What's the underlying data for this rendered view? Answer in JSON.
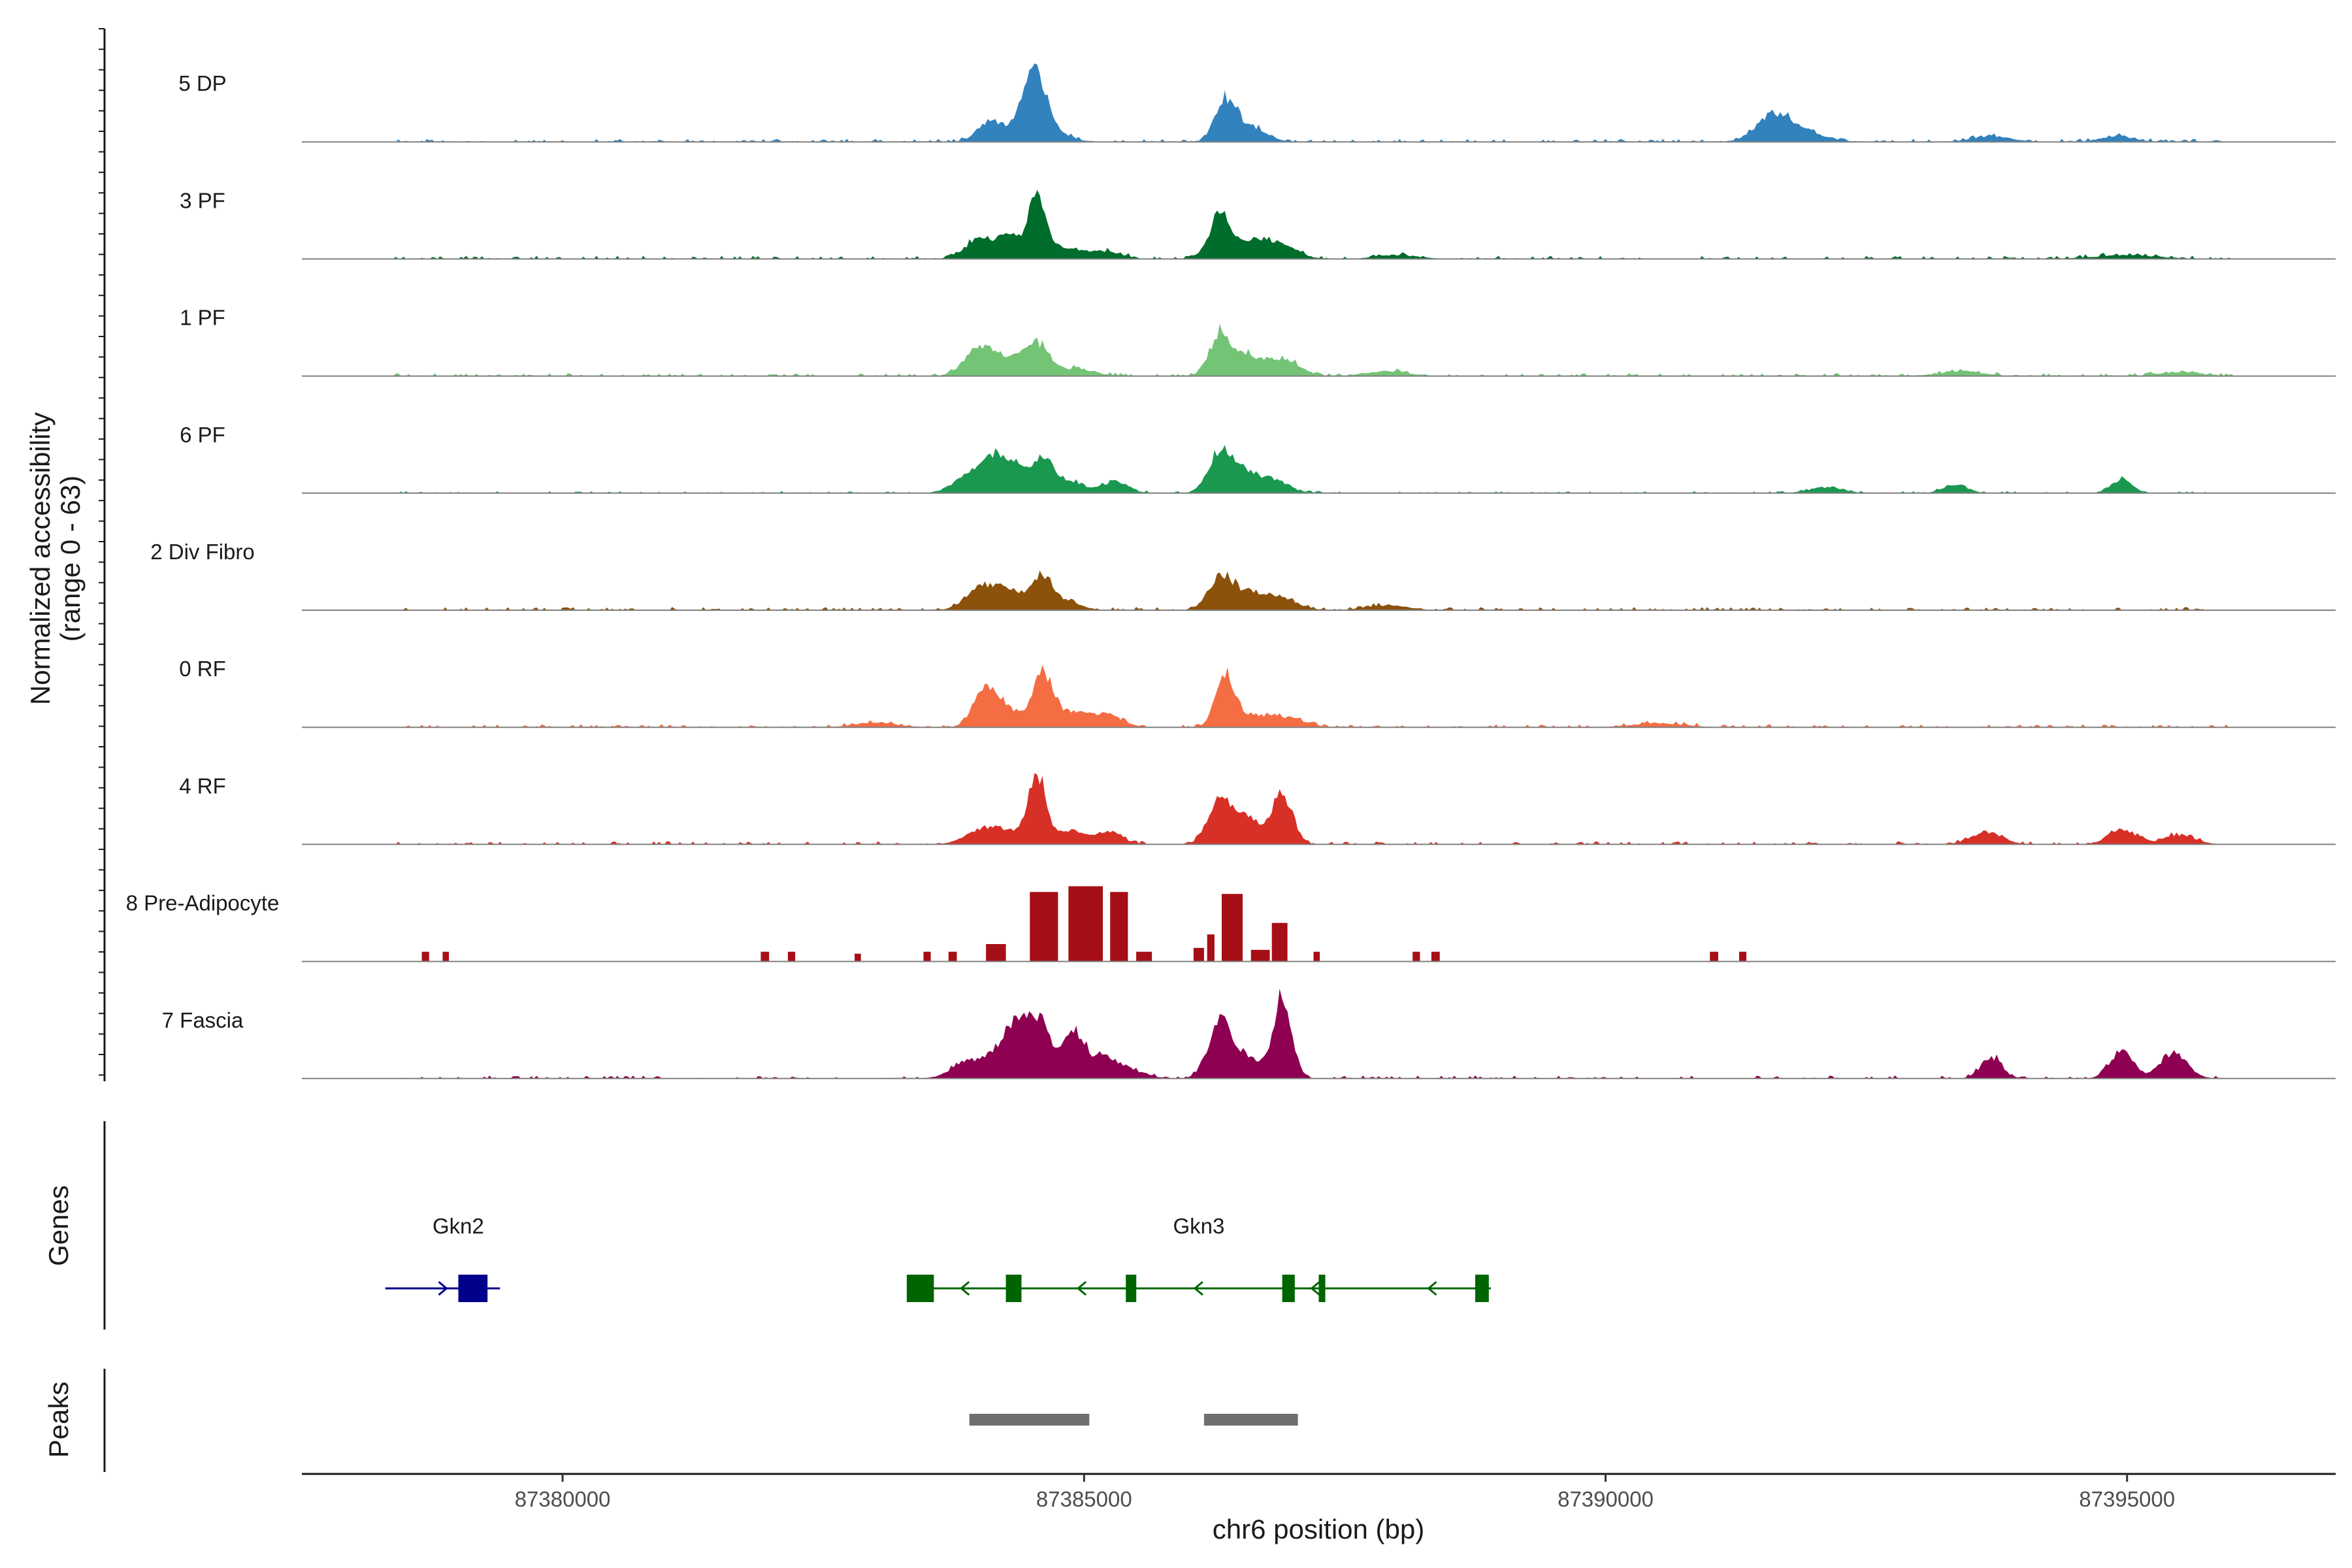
{
  "chart_data": {
    "type": "area",
    "title": "",
    "ylabel_line1": "Normalized accessibility",
    "ylabel_line2": "(range 0 - 63)",
    "xlabel": "chr6 position (bp)",
    "xlim": [
      87377500,
      87397000
    ],
    "ylim": [
      0,
      63
    ],
    "x_ticks": [
      87380000,
      87385000,
      87390000,
      87395000
    ],
    "x_tick_labels": [
      "87380000",
      "87385000",
      "87390000",
      "87395000"
    ],
    "tracks": [
      {
        "name": "5 DP",
        "color": "#3182bd",
        "smooth": true,
        "peaks": [
          [
            87384100,
            22,
            120
          ],
          [
            87384400,
            25,
            90
          ],
          [
            87384550,
            60,
            90
          ],
          [
            87384700,
            12,
            150
          ],
          [
            87386350,
            38,
            90
          ],
          [
            87386550,
            18,
            160
          ],
          [
            87391600,
            26,
            160
          ],
          [
            87391900,
            10,
            200
          ],
          [
            87393700,
            6,
            180
          ],
          [
            87394900,
            6,
            150
          ]
        ],
        "bg_start": 87378400,
        "bg_end": 87396000,
        "bg_level": 3
      },
      {
        "name": "3 PF",
        "color": "#006d2c",
        "smooth": true,
        "peaks": [
          [
            87384000,
            20,
            140
          ],
          [
            87384300,
            22,
            120
          ],
          [
            87384550,
            60,
            80
          ],
          [
            87384800,
            12,
            150
          ],
          [
            87385200,
            8,
            150
          ],
          [
            87386300,
            45,
            100
          ],
          [
            87386600,
            18,
            160
          ],
          [
            87386900,
            14,
            150
          ],
          [
            87388000,
            4,
            200
          ],
          [
            87395000,
            4,
            300
          ]
        ],
        "bg_start": 87378400,
        "bg_end": 87396000,
        "bg_level": 3
      },
      {
        "name": "1 PF",
        "color": "#74c476",
        "smooth": true,
        "peaks": [
          [
            87384000,
            30,
            140
          ],
          [
            87384300,
            16,
            140
          ],
          [
            87384550,
            30,
            110
          ],
          [
            87384900,
            8,
            180
          ],
          [
            87386300,
            42,
            100
          ],
          [
            87386550,
            20,
            130
          ],
          [
            87386900,
            18,
            160
          ],
          [
            87387900,
            5,
            200
          ],
          [
            87393400,
            5,
            200
          ],
          [
            87395500,
            4,
            200
          ]
        ],
        "bg_start": 87378400,
        "bg_end": 87396000,
        "bg_level": 3
      },
      {
        "name": "6 PF",
        "color": "#1a9850",
        "smooth": true,
        "peaks": [
          [
            87383900,
            18,
            150
          ],
          [
            87384150,
            32,
            110
          ],
          [
            87384350,
            26,
            110
          ],
          [
            87384600,
            34,
            100
          ],
          [
            87384850,
            12,
            150
          ],
          [
            87385300,
            12,
            120
          ],
          [
            87386300,
            40,
            110
          ],
          [
            87386500,
            22,
            130
          ],
          [
            87386800,
            14,
            150
          ],
          [
            87392100,
            6,
            150
          ],
          [
            87393350,
            8,
            120
          ],
          [
            87394950,
            14,
            100
          ]
        ],
        "bg_start": 87378400,
        "bg_end": 87396000,
        "bg_level": 2
      },
      {
        "name": "2 Div Fibro",
        "color": "#8c510a",
        "smooth": true,
        "peaks": [
          [
            87384000,
            22,
            140
          ],
          [
            87384300,
            20,
            150
          ],
          [
            87384600,
            32,
            90
          ],
          [
            87384800,
            10,
            150
          ],
          [
            87386300,
            32,
            110
          ],
          [
            87386550,
            18,
            160
          ],
          [
            87386900,
            12,
            150
          ],
          [
            87387900,
            5,
            200
          ]
        ],
        "bg_start": 87378400,
        "bg_end": 87396000,
        "bg_level": 3
      },
      {
        "name": "0 RF",
        "color": "#f46d43",
        "smooth": true,
        "peaks": [
          [
            87384050,
            42,
            110
          ],
          [
            87384300,
            16,
            130
          ],
          [
            87384600,
            54,
            90
          ],
          [
            87384850,
            16,
            140
          ],
          [
            87385200,
            14,
            150
          ],
          [
            87386350,
            52,
            90
          ],
          [
            87386600,
            12,
            150
          ],
          [
            87386950,
            10,
            160
          ],
          [
            87383000,
            5,
            200
          ],
          [
            87390500,
            4,
            250
          ]
        ],
        "bg_start": 87378400,
        "bg_end": 87396000,
        "bg_level": 3
      },
      {
        "name": "4 RF",
        "color": "#d73027",
        "smooth": true,
        "peaks": [
          [
            87384000,
            14,
            150
          ],
          [
            87384250,
            12,
            150
          ],
          [
            87384550,
            70,
            90
          ],
          [
            87384900,
            14,
            130
          ],
          [
            87385250,
            12,
            120
          ],
          [
            87386300,
            44,
            110
          ],
          [
            87386550,
            30,
            120
          ],
          [
            87386900,
            52,
            100
          ],
          [
            87393650,
            12,
            150
          ],
          [
            87394950,
            16,
            130
          ],
          [
            87395500,
            10,
            150
          ]
        ],
        "bg_start": 87378400,
        "bg_end": 87396000,
        "bg_level": 3
      },
      {
        "name": "8 Pre-Adipocyte",
        "color": "#a50f15",
        "smooth": false,
        "blocks": [
          [
            87378650,
            87378720,
            10
          ],
          [
            87378850,
            87378910,
            10
          ],
          [
            87381900,
            87381980,
            10
          ],
          [
            87382160,
            87382230,
            10
          ],
          [
            87382800,
            87382860,
            8
          ],
          [
            87383460,
            87383530,
            10
          ],
          [
            87383700,
            87383780,
            10
          ],
          [
            87384060,
            87384250,
            18
          ],
          [
            87384480,
            87384750,
            72
          ],
          [
            87384850,
            87385180,
            78
          ],
          [
            87385250,
            87385420,
            72
          ],
          [
            87385500,
            87385650,
            10
          ],
          [
            87386050,
            87386150,
            14
          ],
          [
            87386180,
            87386250,
            28
          ],
          [
            87386320,
            87386520,
            70
          ],
          [
            87386600,
            87386780,
            12
          ],
          [
            87386800,
            87386950,
            40
          ],
          [
            87387200,
            87387260,
            10
          ],
          [
            87388150,
            87388220,
            10
          ],
          [
            87388330,
            87388410,
            10
          ],
          [
            87391000,
            87391080,
            10
          ],
          [
            87391280,
            87391350,
            10
          ]
        ]
      },
      {
        "name": "7 Fascia",
        "color": "#8e0152",
        "smooth": true,
        "peaks": [
          [
            87383900,
            18,
            160
          ],
          [
            87384200,
            26,
            120
          ],
          [
            87384350,
            40,
            90
          ],
          [
            87384550,
            60,
            100
          ],
          [
            87384800,
            26,
            110
          ],
          [
            87384950,
            34,
            90
          ],
          [
            87385200,
            20,
            120
          ],
          [
            87385450,
            8,
            150
          ],
          [
            87386300,
            58,
            110
          ],
          [
            87386550,
            20,
            140
          ],
          [
            87386900,
            84,
            90
          ],
          [
            87393700,
            22,
            100
          ],
          [
            87394950,
            30,
            110
          ],
          [
            87395450,
            26,
            130
          ]
        ],
        "bg_start": 87378500,
        "bg_end": 87396000,
        "bg_level": 3
      }
    ],
    "genes_title": "Genes",
    "peaks_title": "Peaks",
    "genes": [
      {
        "name": "Gkn2",
        "color": "#00008b",
        "strand": "+",
        "start": 87378300,
        "end": 87379400,
        "label_x": 87379000,
        "exons": [
          [
            87379000,
            87379280
          ]
        ]
      },
      {
        "name": "Gkn3",
        "color": "#006400",
        "strand": "-",
        "start": 87383300,
        "end": 87388900,
        "label_x": 87386100,
        "exons": [
          [
            87383300,
            87383560
          ],
          [
            87384250,
            87384400
          ],
          [
            87385400,
            87385500
          ],
          [
            87386900,
            87387020
          ],
          [
            87387250,
            87387310
          ],
          [
            87388750,
            87388880
          ]
        ]
      }
    ],
    "peaks": [
      [
        87383900,
        87385050
      ],
      [
        87386150,
        87387050
      ]
    ],
    "peak_color": "#6e6e6e"
  }
}
